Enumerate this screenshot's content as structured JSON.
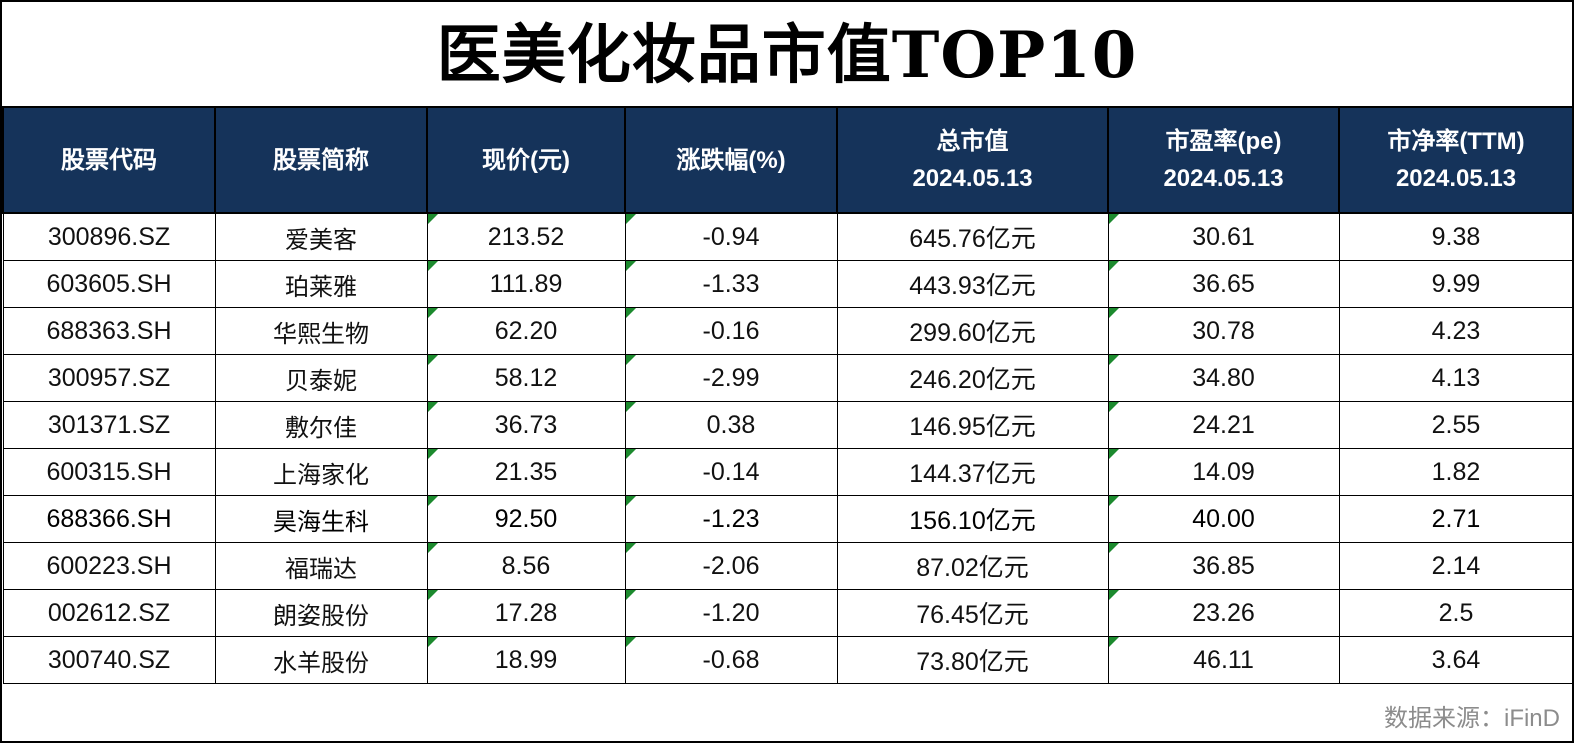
{
  "title": "医美化妆品市值TOP10",
  "colors": {
    "header_bg": "#15335a",
    "flag": "#1c8a2e",
    "source_text": "#8c8c8c"
  },
  "columns": [
    {
      "line1": "股票代码",
      "line2": ""
    },
    {
      "line1": "股票简称",
      "line2": ""
    },
    {
      "line1": "现价(元)",
      "line2": ""
    },
    {
      "line1": "涨跌幅(%)",
      "line2": ""
    },
    {
      "line1": "总市值",
      "line2": "2024.05.13"
    },
    {
      "line1": "市盈率(pe)",
      "line2": "2024.05.13"
    },
    {
      "line1": "市净率(TTM)",
      "line2": "2024.05.13"
    }
  ],
  "rows": [
    {
      "code": "300896.SZ",
      "name": "爱美客",
      "price": "213.52",
      "change": "-0.94",
      "mcap": "645.76亿元",
      "pe": "30.61",
      "pb": "9.38"
    },
    {
      "code": "603605.SH",
      "name": "珀莱雅",
      "price": "111.89",
      "change": "-1.33",
      "mcap": "443.93亿元",
      "pe": "36.65",
      "pb": "9.99"
    },
    {
      "code": "688363.SH",
      "name": "华熙生物",
      "price": "62.20",
      "change": "-0.16",
      "mcap": "299.60亿元",
      "pe": "30.78",
      "pb": "4.23"
    },
    {
      "code": "300957.SZ",
      "name": "贝泰妮",
      "price": "58.12",
      "change": "-2.99",
      "mcap": "246.20亿元",
      "pe": "34.80",
      "pb": "4.13"
    },
    {
      "code": "301371.SZ",
      "name": "敷尔佳",
      "price": "36.73",
      "change": "0.38",
      "mcap": "146.95亿元",
      "pe": "24.21",
      "pb": "2.55"
    },
    {
      "code": "600315.SH",
      "name": "上海家化",
      "price": "21.35",
      "change": "-0.14",
      "mcap": "144.37亿元",
      "pe": "14.09",
      "pb": "1.82"
    },
    {
      "code": "688366.SH",
      "name": "昊海生科",
      "price": "92.50",
      "change": "-1.23",
      "mcap": "156.10亿元",
      "pe": "40.00",
      "pb": "2.71"
    },
    {
      "code": "600223.SH",
      "name": "福瑞达",
      "price": "8.56",
      "change": "-2.06",
      "mcap": "87.02亿元",
      "pe": "36.85",
      "pb": "2.14"
    },
    {
      "code": "002612.SZ",
      "name": "朗姿股份",
      "price": "17.28",
      "change": "-1.20",
      "mcap": "76.45亿元",
      "pe": "23.26",
      "pb": "2.5"
    },
    {
      "code": "300740.SZ",
      "name": "水羊股份",
      "price": "18.99",
      "change": "-0.68",
      "mcap": "73.80亿元",
      "pe": "46.11",
      "pb": "3.64"
    }
  ],
  "source": "数据来源：iFinD"
}
